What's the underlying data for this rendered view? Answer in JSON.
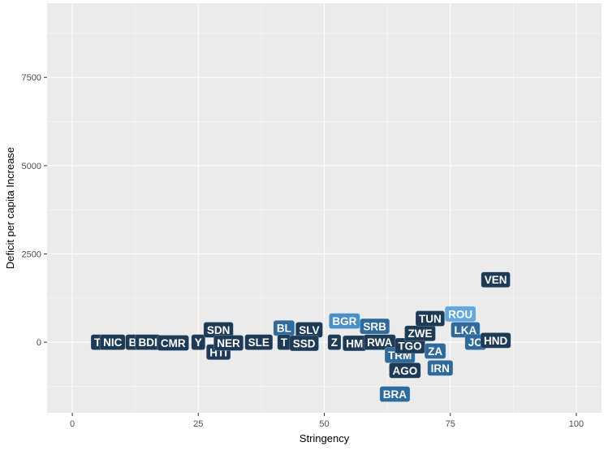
{
  "chart_data": {
    "type": "scatter",
    "xlabel": "Stringency",
    "ylabel": "Deficit per capita Increase",
    "xlim": [
      -5,
      105
    ],
    "ylim": [
      -2000,
      9600
    ],
    "x_ticks": [
      0,
      25,
      50,
      75,
      100
    ],
    "y_ticks": [
      0,
      2500,
      5000,
      7500
    ],
    "grid": true,
    "legend": "none",
    "colors": {
      "panel": "#ebebeb",
      "grid_major": "#ffffff",
      "dark": "#1d3a57",
      "medium": "#2f6a9c",
      "light": "#4a90c8",
      "pale": "#62a8e0"
    },
    "points": [
      {
        "label": "T",
        "x": 5,
        "y": 0,
        "shade": "dark"
      },
      {
        "label": "NIC",
        "x": 8,
        "y": 0,
        "shade": "dark"
      },
      {
        "label": "B",
        "x": 12,
        "y": 0,
        "shade": "dark"
      },
      {
        "label": "BDI",
        "x": 15,
        "y": 0,
        "shade": "dark"
      },
      {
        "label": "CMR",
        "x": 20,
        "y": -20,
        "shade": "dark"
      },
      {
        "label": "Y",
        "x": 25,
        "y": 0,
        "shade": "dark"
      },
      {
        "label": "SDN",
        "x": 29,
        "y": 350,
        "shade": "dark"
      },
      {
        "label": "HTI",
        "x": 29,
        "y": -280,
        "shade": "dark"
      },
      {
        "label": "NER",
        "x": 31,
        "y": -20,
        "shade": "dark"
      },
      {
        "label": "SLE",
        "x": 37,
        "y": 0,
        "shade": "dark"
      },
      {
        "label": "BL",
        "x": 42,
        "y": 400,
        "shade": "medium"
      },
      {
        "label": "T",
        "x": 42,
        "y": 0,
        "shade": "dark"
      },
      {
        "label": "SLV",
        "x": 47,
        "y": 350,
        "shade": "dark"
      },
      {
        "label": "SSD",
        "x": 46,
        "y": -30,
        "shade": "dark"
      },
      {
        "label": "Z",
        "x": 52,
        "y": 0,
        "shade": "dark"
      },
      {
        "label": "HM",
        "x": 56,
        "y": -30,
        "shade": "dark"
      },
      {
        "label": "BGR",
        "x": 54,
        "y": 600,
        "shade": "light"
      },
      {
        "label": "SRB",
        "x": 60,
        "y": 450,
        "shade": "medium"
      },
      {
        "label": "RWA",
        "x": 61,
        "y": 0,
        "shade": "dark"
      },
      {
        "label": "TRM",
        "x": 65,
        "y": -370,
        "shade": "medium"
      },
      {
        "label": "AGO",
        "x": 66,
        "y": -800,
        "shade": "dark"
      },
      {
        "label": "TGO",
        "x": 67,
        "y": -100,
        "shade": "dark"
      },
      {
        "label": "ZWE",
        "x": 69,
        "y": 250,
        "shade": "dark"
      },
      {
        "label": "TUN",
        "x": 71,
        "y": 670,
        "shade": "dark"
      },
      {
        "label": "ZA",
        "x": 72,
        "y": -250,
        "shade": "medium"
      },
      {
        "label": "IRN",
        "x": 73,
        "y": -730,
        "shade": "medium"
      },
      {
        "label": "ROU",
        "x": 77,
        "y": 800,
        "shade": "pale"
      },
      {
        "label": "LKA",
        "x": 78,
        "y": 350,
        "shade": "medium"
      },
      {
        "label": "JO",
        "x": 80,
        "y": 0,
        "shade": "medium"
      },
      {
        "label": "HND",
        "x": 84,
        "y": 50,
        "shade": "dark"
      },
      {
        "label": "BRA",
        "x": 64,
        "y": -1470,
        "shade": "medium"
      },
      {
        "label": "VEN",
        "x": 84,
        "y": 1770,
        "shade": "dark"
      }
    ]
  }
}
